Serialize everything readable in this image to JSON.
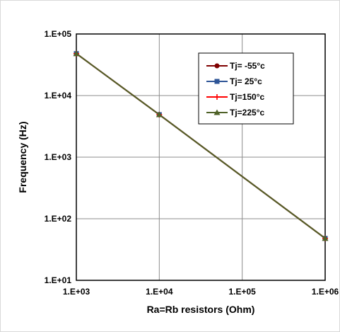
{
  "chart_data": {
    "type": "line",
    "title": "",
    "xlabel": "Ra=Rb resistors (Ohm)",
    "ylabel": "Frequency  (Hz)",
    "x_scale": "log",
    "y_scale": "log",
    "xlim": [
      1000,
      1000000
    ],
    "ylim": [
      10,
      100000
    ],
    "x_ticks": [
      {
        "value": 1000,
        "label": "1.E+03"
      },
      {
        "value": 10000,
        "label": "1.E+04"
      },
      {
        "value": 100000,
        "label": "1.E+05"
      },
      {
        "value": 1000000,
        "label": "1.E+06"
      }
    ],
    "y_ticks": [
      {
        "value": 10,
        "label": "1.E+01"
      },
      {
        "value": 100,
        "label": "1.E+02"
      },
      {
        "value": 1000,
        "label": "1.E+03"
      },
      {
        "value": 10000,
        "label": "1.E+04"
      },
      {
        "value": 100000,
        "label": "1.E+05"
      }
    ],
    "grid": true,
    "legend_position": "top-right",
    "x": [
      1000,
      10000,
      1000000
    ],
    "series": [
      {
        "name": "Tj= -55°c",
        "color": "#7f0000",
        "marker": "circle",
        "values": [
          48000,
          4900,
          48
        ]
      },
      {
        "name": "Tj= 25°c",
        "color": "#2e5597",
        "marker": "square",
        "values": [
          48000,
          4900,
          48
        ]
      },
      {
        "name": "Tj=150°c",
        "color": "#ff0000",
        "marker": "plus",
        "values": [
          48000,
          4900,
          48
        ]
      },
      {
        "name": "Tj=225°c",
        "color": "#4f6228",
        "marker": "triangle",
        "values": [
          48000,
          4900,
          48
        ]
      }
    ]
  }
}
